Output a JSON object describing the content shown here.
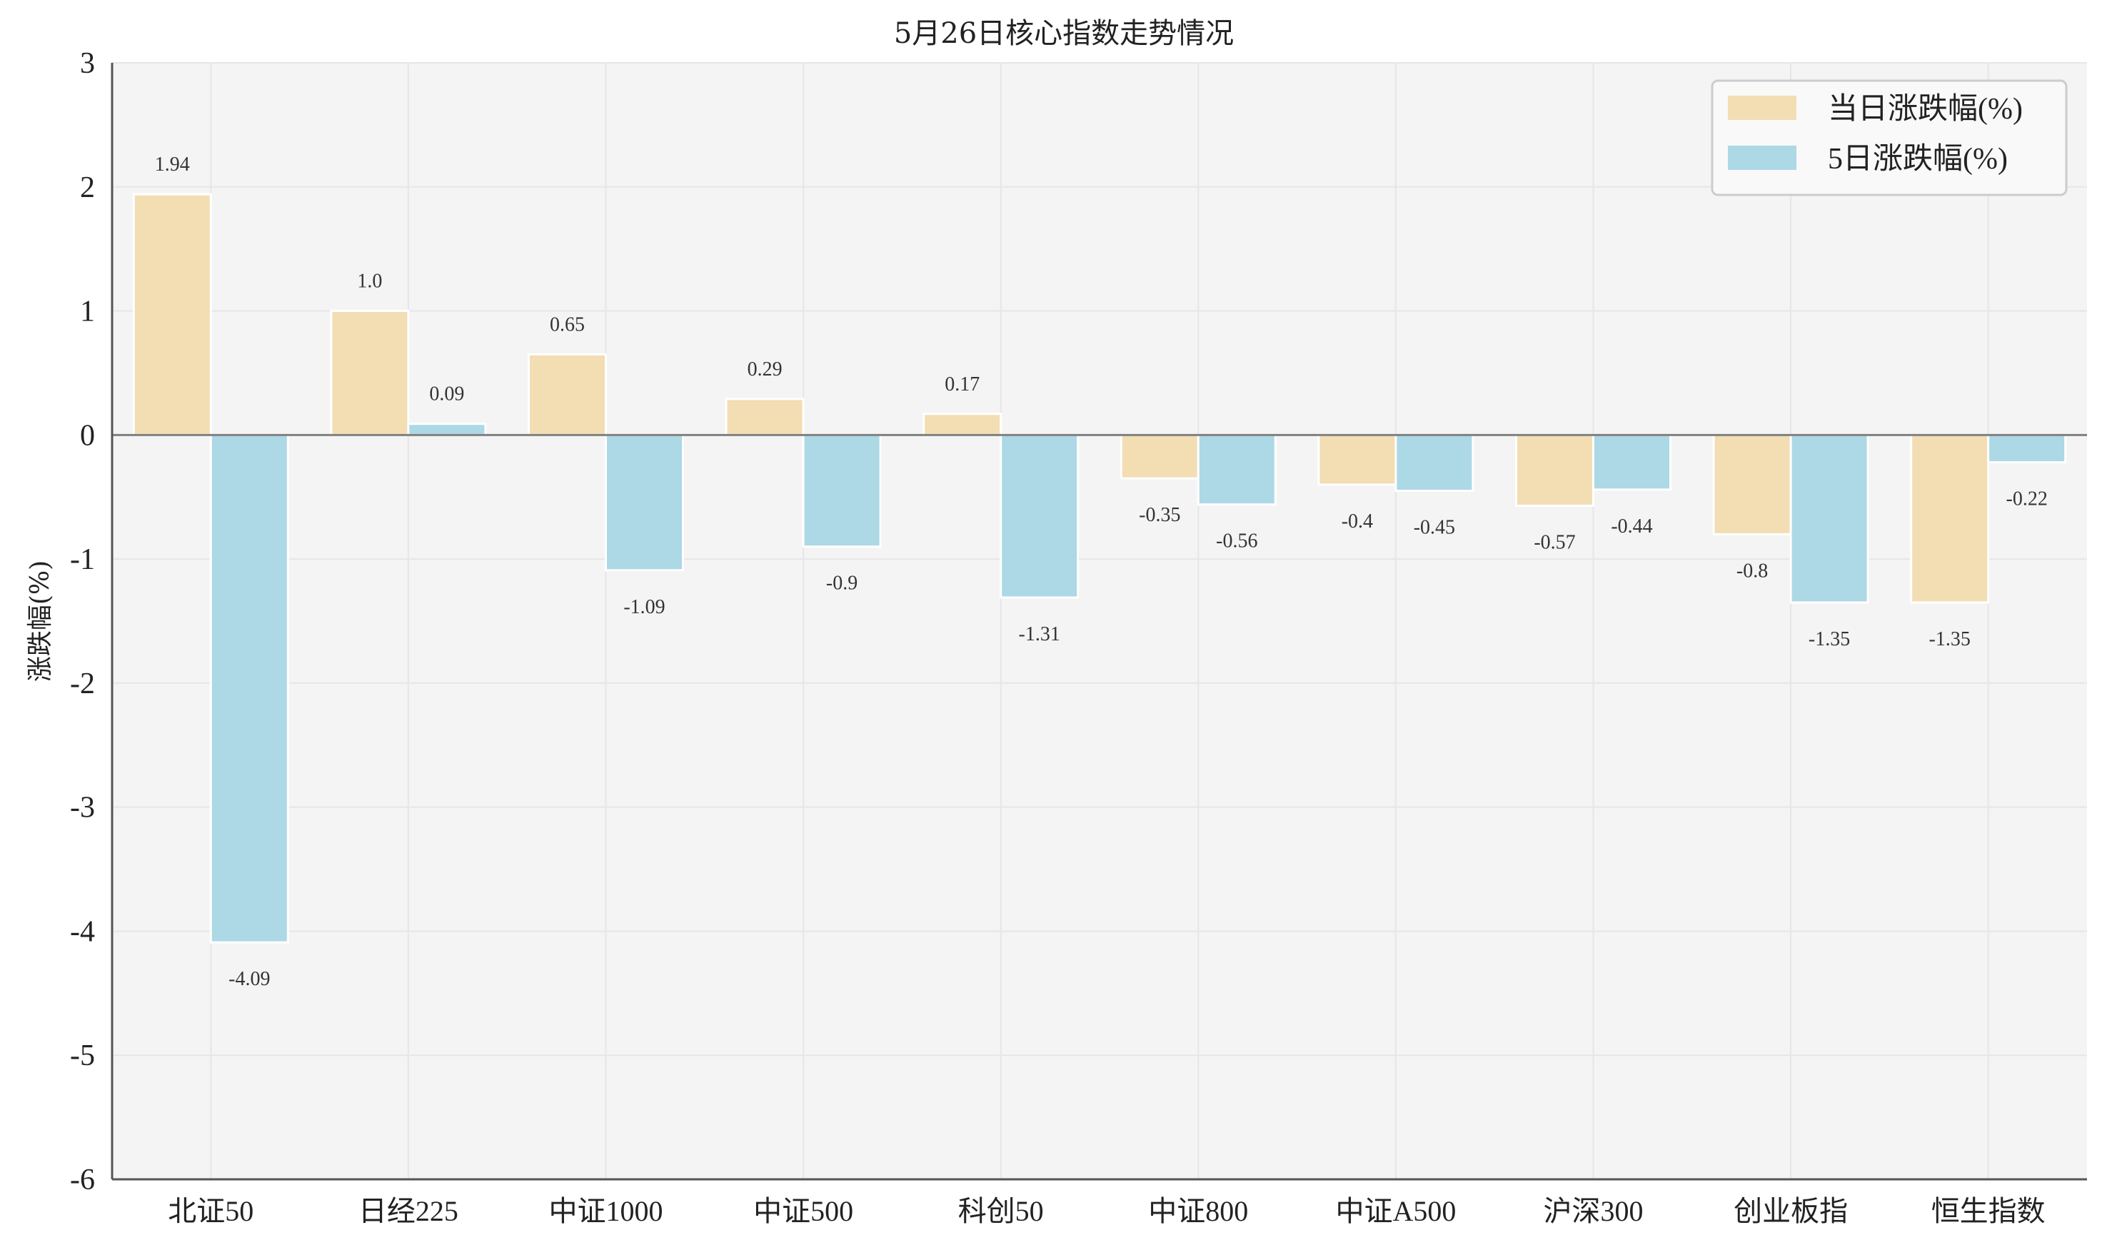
{
  "chart_data": {
    "type": "bar",
    "title": "5月26日核心指数走势情况",
    "ylabel": "涨跌幅(%)",
    "xlabel": "",
    "ylim": [
      -6,
      3
    ],
    "yticks": [
      3,
      2,
      1,
      0,
      -1,
      -2,
      -3,
      -4,
      -5,
      -6
    ],
    "ytick_labels": [
      "3",
      "2",
      "1",
      "0",
      "-1",
      "-2",
      "-3",
      "-4",
      "-5",
      "-6"
    ],
    "grid": true,
    "legend_position": "top-right",
    "categories": [
      "北证50",
      "日经225",
      "中证1000",
      "中证500",
      "科创50",
      "中证800",
      "中证A500",
      "沪深300",
      "创业板指",
      "恒生指数"
    ],
    "series": [
      {
        "name": "当日涨跌幅(%)",
        "color": "#f3ddb3",
        "values": [
          1.94,
          1.0,
          0.65,
          0.29,
          0.17,
          -0.35,
          -0.4,
          -0.57,
          -0.8,
          -1.35
        ],
        "labels": [
          "1.94",
          "1.0",
          "0.65",
          "0.29",
          "0.17",
          "-0.35",
          "-0.4",
          "-0.57",
          "-0.8",
          "-1.35"
        ]
      },
      {
        "name": "5日涨跌幅(%)",
        "color": "#add8e6",
        "values": [
          -4.09,
          0.09,
          -1.09,
          -0.9,
          -1.31,
          -0.56,
          -0.45,
          -0.44,
          -1.35,
          -0.22
        ],
        "labels": [
          "-4.09",
          "0.09",
          "-1.09",
          "-0.9",
          "-1.31",
          "-0.56",
          "-0.45",
          "-0.44",
          "-1.35",
          "-0.22"
        ]
      }
    ]
  }
}
